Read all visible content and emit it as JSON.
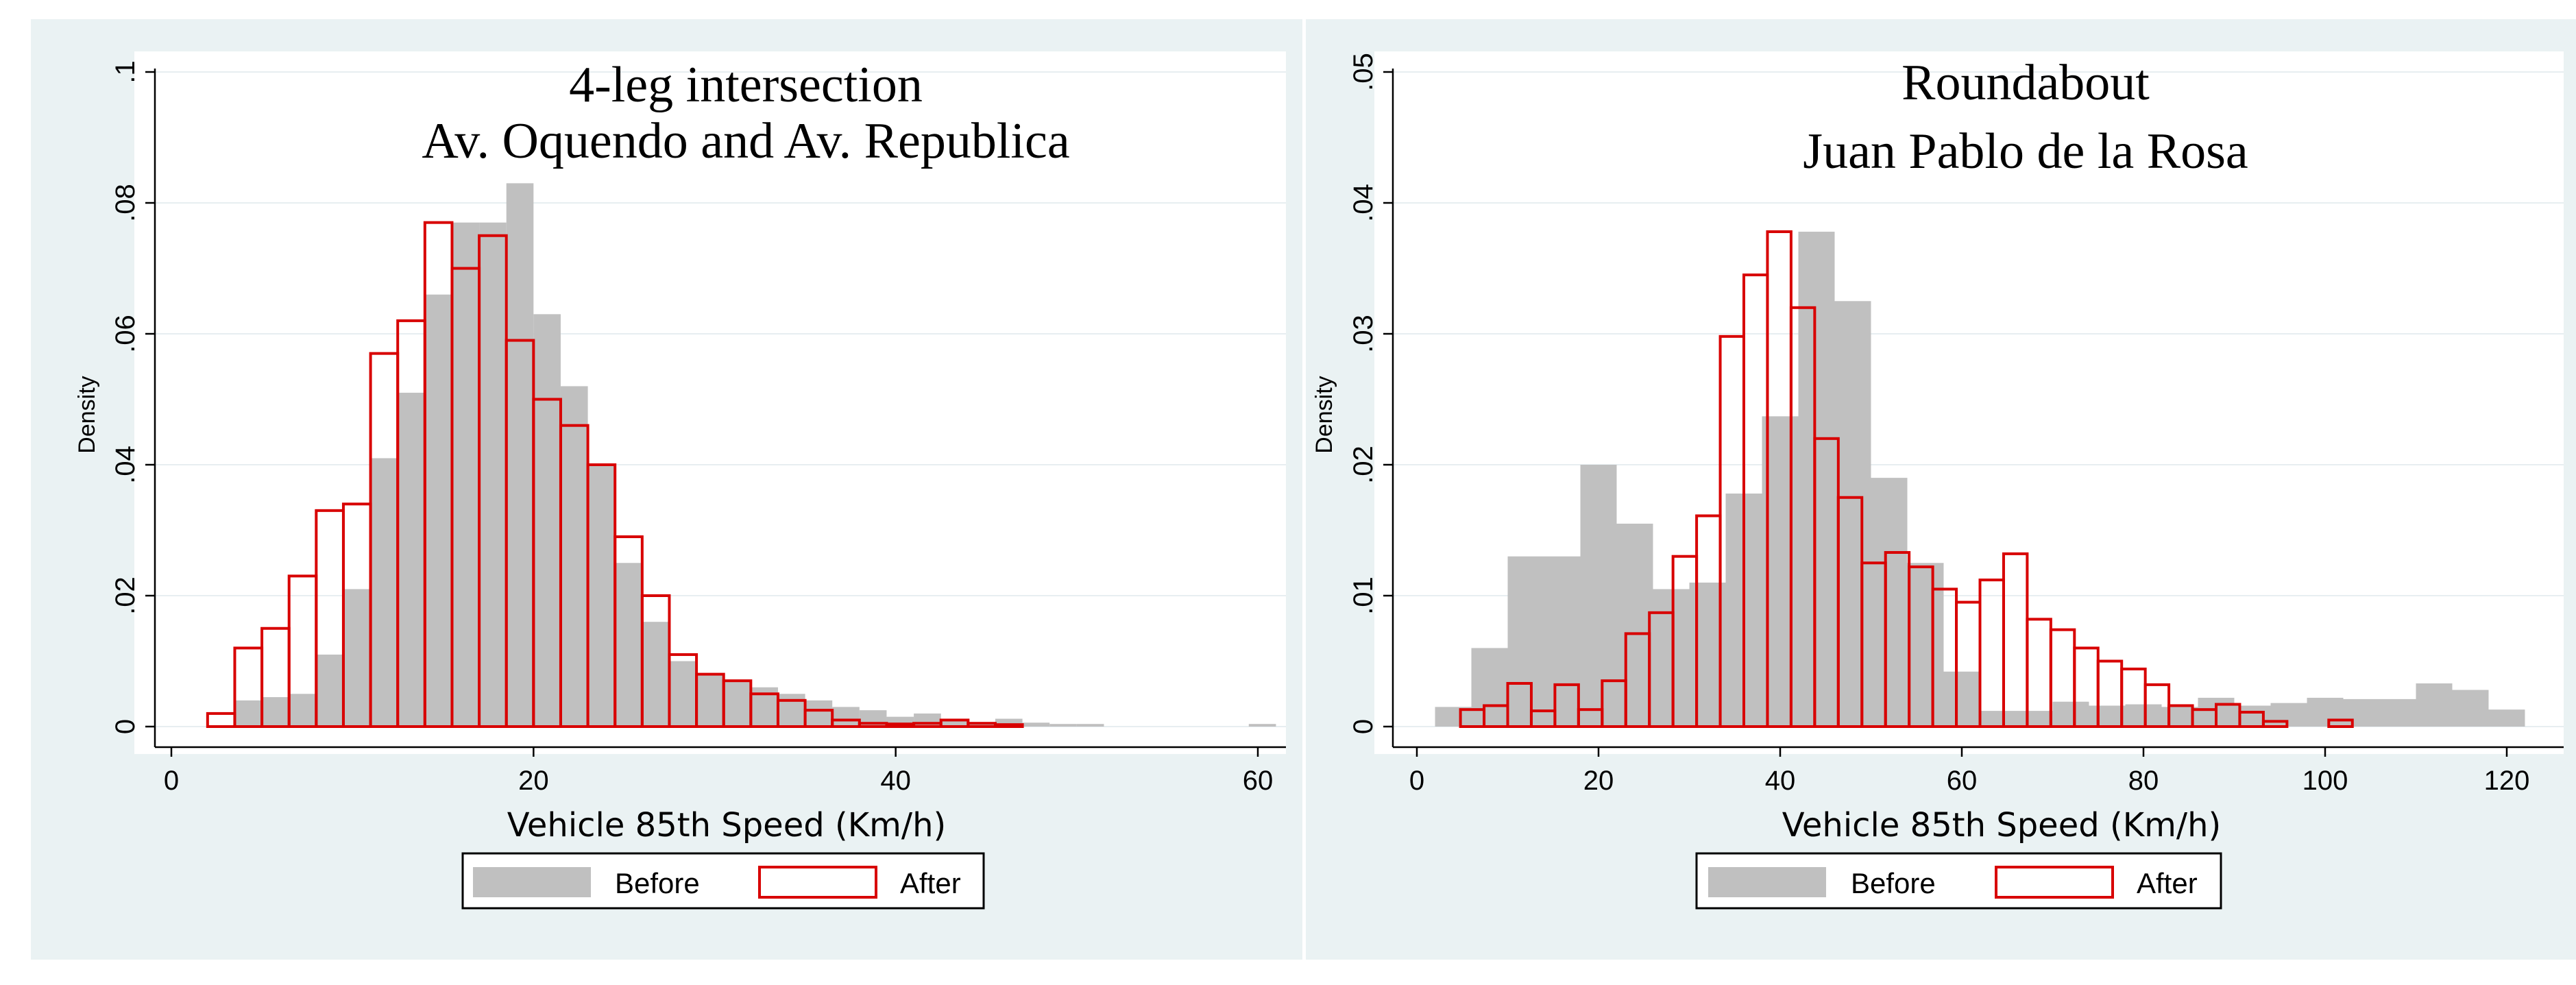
{
  "chart_data": [
    {
      "type": "bar",
      "title": [
        "4-leg intersection",
        "Av. Oquendo and Av. Republica"
      ],
      "xlabel": "Vehicle 85th Speed (Km/h)",
      "ylabel": "Density",
      "xlim": [
        0,
        61
      ],
      "ylim": [
        0,
        0.1
      ],
      "xticks": [
        "0",
        "20",
        "40",
        "60"
      ],
      "yticks": [
        "0",
        ".02",
        ".04",
        ".06",
        ".08",
        ".1"
      ],
      "legend": {
        "position": "bottom",
        "entries": [
          "Before",
          "After"
        ]
      },
      "series": [
        {
          "name": "Before",
          "bin_width": 1.5,
          "bins": [
            [
              3.5,
              0.004
            ],
            [
              5.0,
              0.0045
            ],
            [
              6.5,
              0.005
            ],
            [
              8.0,
              0.011
            ],
            [
              9.5,
              0.021
            ],
            [
              11.0,
              0.041
            ],
            [
              12.5,
              0.051
            ],
            [
              14.0,
              0.066
            ],
            [
              15.5,
              0.077
            ],
            [
              17.0,
              0.077
            ],
            [
              18.5,
              0.083
            ],
            [
              20.0,
              0.063
            ],
            [
              21.5,
              0.052
            ],
            [
              23.0,
              0.04
            ],
            [
              24.5,
              0.025
            ],
            [
              26.0,
              0.016
            ],
            [
              27.5,
              0.01
            ],
            [
              29.0,
              0.008
            ],
            [
              30.5,
              0.007
            ],
            [
              32.0,
              0.006
            ],
            [
              33.5,
              0.005
            ],
            [
              35.0,
              0.004
            ],
            [
              36.5,
              0.003
            ],
            [
              38.0,
              0.0025
            ],
            [
              39.5,
              0.0015
            ],
            [
              41.0,
              0.002
            ],
            [
              42.5,
              0.001
            ],
            [
              44.0,
              0.0007
            ],
            [
              45.5,
              0.0012
            ],
            [
              47.0,
              0.0006
            ],
            [
              48.5,
              0.0004
            ],
            [
              50.0,
              0.0004
            ],
            [
              59.5,
              0.0004
            ]
          ]
        },
        {
          "name": "After",
          "bin_width": 1.5,
          "bins": [
            [
              2.0,
              0.002
            ],
            [
              3.5,
              0.012
            ],
            [
              5.0,
              0.015
            ],
            [
              6.5,
              0.023
            ],
            [
              8.0,
              0.033
            ],
            [
              9.5,
              0.034
            ],
            [
              11.0,
              0.057
            ],
            [
              12.5,
              0.062
            ],
            [
              14.0,
              0.077
            ],
            [
              15.5,
              0.07
            ],
            [
              17.0,
              0.075
            ],
            [
              18.5,
              0.059
            ],
            [
              20.0,
              0.05
            ],
            [
              21.5,
              0.046
            ],
            [
              23.0,
              0.04
            ],
            [
              24.5,
              0.029
            ],
            [
              26.0,
              0.02
            ],
            [
              27.5,
              0.011
            ],
            [
              29.0,
              0.008
            ],
            [
              30.5,
              0.007
            ],
            [
              32.0,
              0.005
            ],
            [
              33.5,
              0.004
            ],
            [
              35.0,
              0.0025
            ],
            [
              36.5,
              0.001
            ],
            [
              38.0,
              0.0005
            ],
            [
              39.5,
              0.0004
            ],
            [
              41.0,
              0.0005
            ],
            [
              42.5,
              0.001
            ],
            [
              44.0,
              0.0005
            ],
            [
              45.5,
              0.0003
            ]
          ]
        }
      ]
    },
    {
      "type": "bar",
      "title": [
        "Roundabout",
        "Juan Pablo de la Rosa"
      ],
      "xlabel": "Vehicle 85th Speed (Km/h)",
      "ylabel": "Density",
      "xlim": [
        0,
        120
      ],
      "ylim": [
        0,
        0.05
      ],
      "xticks": [
        "0",
        "20",
        "40",
        "60",
        "80",
        "100",
        "120"
      ],
      "yticks": [
        "0",
        ".01",
        ".02",
        ".03",
        ".04",
        ".05"
      ],
      "legend": {
        "position": "bottom",
        "entries": [
          "Before",
          "After"
        ]
      },
      "series": [
        {
          "name": "Before",
          "bin_width": 4,
          "bins": [
            [
              2,
              0.0015
            ],
            [
              6,
              0.006
            ],
            [
              10,
              0.013
            ],
            [
              14,
              0.013
            ],
            [
              18,
              0.02
            ],
            [
              22,
              0.0155
            ],
            [
              26,
              0.0105
            ],
            [
              30,
              0.011
            ],
            [
              34,
              0.0178
            ],
            [
              38,
              0.0237
            ],
            [
              42,
              0.0378
            ],
            [
              46,
              0.0325
            ],
            [
              50,
              0.019
            ],
            [
              54,
              0.0125
            ],
            [
              58,
              0.0042
            ],
            [
              62,
              0.0012
            ],
            [
              66,
              0.0012
            ],
            [
              70,
              0.0019
            ],
            [
              74,
              0.0016
            ],
            [
              78,
              0.0017
            ],
            [
              82,
              0.0015
            ],
            [
              86,
              0.0022
            ],
            [
              90,
              0.0016
            ],
            [
              94,
              0.0018
            ],
            [
              98,
              0.0022
            ],
            [
              102,
              0.0021
            ],
            [
              106,
              0.0021
            ],
            [
              110,
              0.0033
            ],
            [
              114,
              0.0028
            ],
            [
              118,
              0.0013
            ]
          ]
        },
        {
          "name": "After",
          "bin_width": 2.6,
          "bins": [
            [
              4.8,
              0.0013
            ],
            [
              7.4,
              0.0016
            ],
            [
              10.0,
              0.0033
            ],
            [
              12.6,
              0.0012
            ],
            [
              15.2,
              0.0032
            ],
            [
              17.8,
              0.0013
            ],
            [
              20.4,
              0.0035
            ],
            [
              23.0,
              0.0071
            ],
            [
              25.6,
              0.0087
            ],
            [
              28.2,
              0.013
            ],
            [
              30.8,
              0.0161
            ],
            [
              33.4,
              0.0298
            ],
            [
              36.0,
              0.0345
            ],
            [
              38.6,
              0.0378
            ],
            [
              41.2,
              0.032
            ],
            [
              43.8,
              0.022
            ],
            [
              46.4,
              0.0175
            ],
            [
              49.0,
              0.0125
            ],
            [
              51.6,
              0.0133
            ],
            [
              54.2,
              0.0122
            ],
            [
              56.8,
              0.0105
            ],
            [
              59.4,
              0.0095
            ],
            [
              62.0,
              0.0112
            ],
            [
              64.6,
              0.0132
            ],
            [
              67.2,
              0.0082
            ],
            [
              69.8,
              0.0074
            ],
            [
              72.4,
              0.006
            ],
            [
              75.0,
              0.005
            ],
            [
              77.6,
              0.0044
            ],
            [
              80.2,
              0.0032
            ],
            [
              82.8,
              0.0016
            ],
            [
              85.4,
              0.0013
            ],
            [
              88.0,
              0.0017
            ],
            [
              90.6,
              0.0011
            ],
            [
              93.2,
              0.0004
            ],
            [
              100.4,
              0.0005
            ]
          ]
        }
      ]
    }
  ]
}
